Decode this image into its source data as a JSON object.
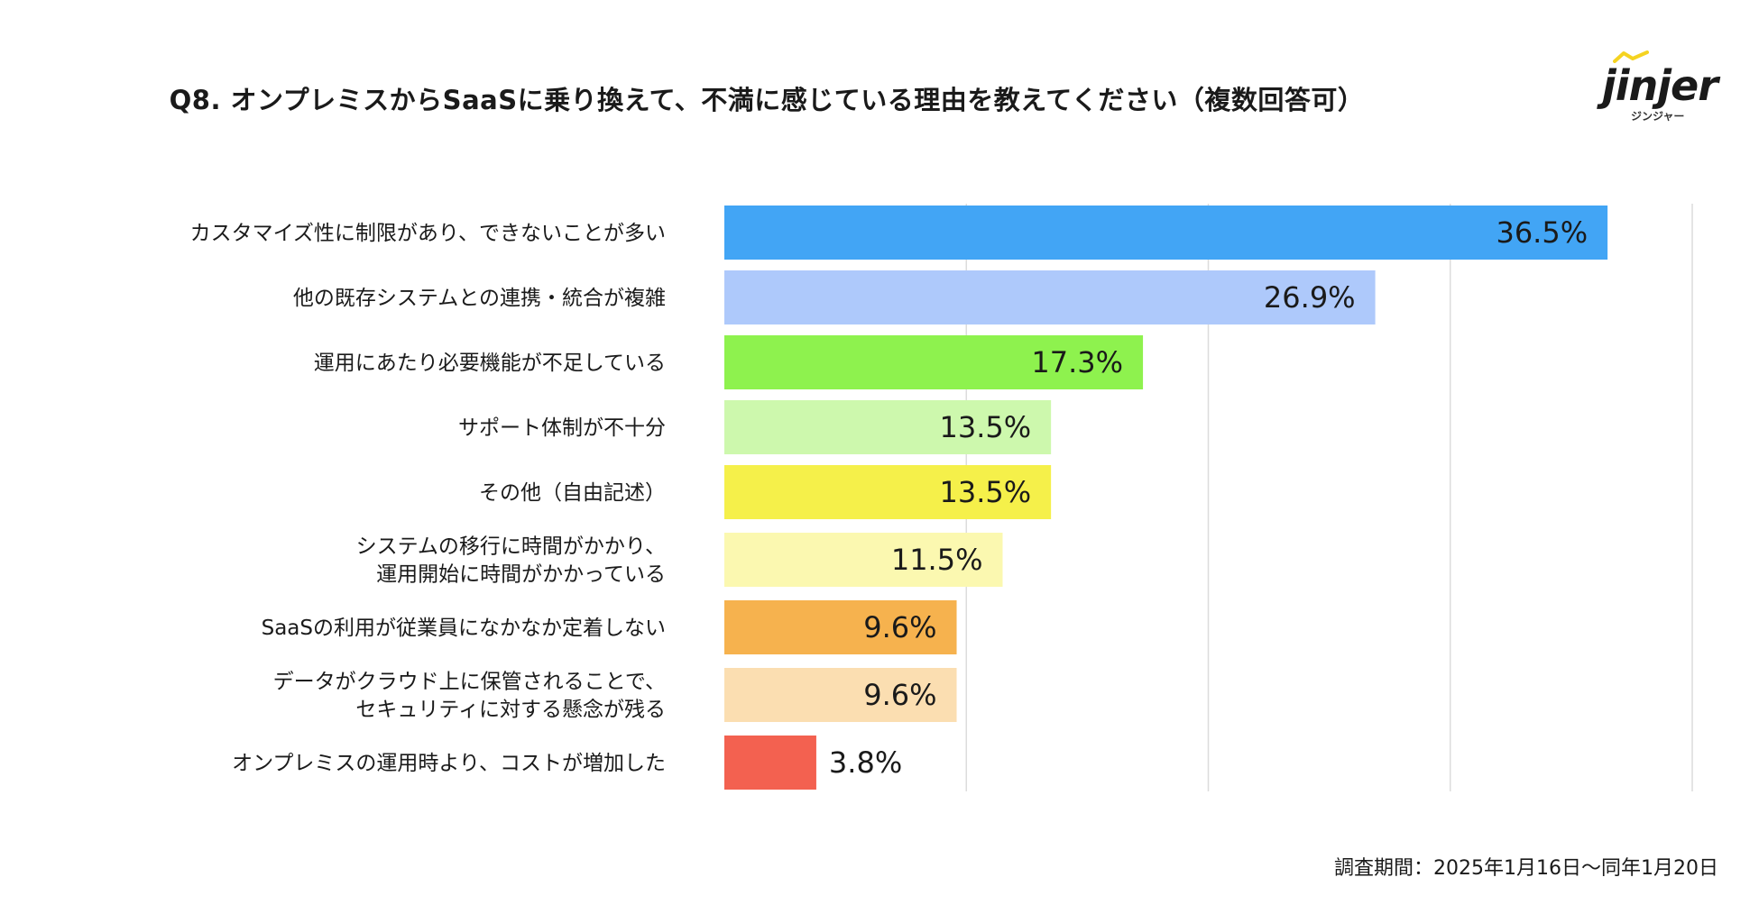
{
  "chart_data": {
    "type": "bar",
    "orientation": "horizontal",
    "title": "Q8. オンプレミスからSaaSに乗り換えて、不満に感じている理由を教えてください（複数回答可）",
    "categories": [
      [
        "カスタマイズ性に制限があり、できないことが多い"
      ],
      [
        "他の既存システムとの連携・統合が複雑"
      ],
      [
        "運用にあたり必要機能が不足している"
      ],
      [
        "サポート体制が不十分"
      ],
      [
        "その他（自由記述）"
      ],
      [
        "システムの移行に時間がかかり、",
        "運用開始に時間がかかっている"
      ],
      [
        "SaaSの利用が従業員になかなか定着しない"
      ],
      [
        "データがクラウド上に保管されることで、",
        "セキュリティに対する懸念が残る"
      ],
      [
        "オンプレミスの運用時より、コストが増加した"
      ]
    ],
    "values": [
      36.5,
      26.9,
      17.3,
      13.5,
      13.5,
      11.5,
      9.6,
      9.6,
      3.8
    ],
    "value_labels": [
      "36.5%",
      "26.9%",
      "17.3%",
      "13.5%",
      "13.5%",
      "11.5%",
      "9.6%",
      "9.6%",
      "3.8%"
    ],
    "colors": [
      "#42a5f5",
      "#aec9fb",
      "#8ef24e",
      "#cdf8ad",
      "#f5f04a",
      "#fbf8b0",
      "#f6b24e",
      "#fbdeb1",
      "#f36150"
    ],
    "xlim": [
      0,
      40
    ],
    "gridlines": [
      10,
      20,
      30,
      40
    ]
  },
  "logo": {
    "name": "jinjer",
    "sub": "ジンジャー",
    "accent": "#f5d321"
  },
  "footnote": "調査期間：2025年1月16日〜同年1月20日"
}
